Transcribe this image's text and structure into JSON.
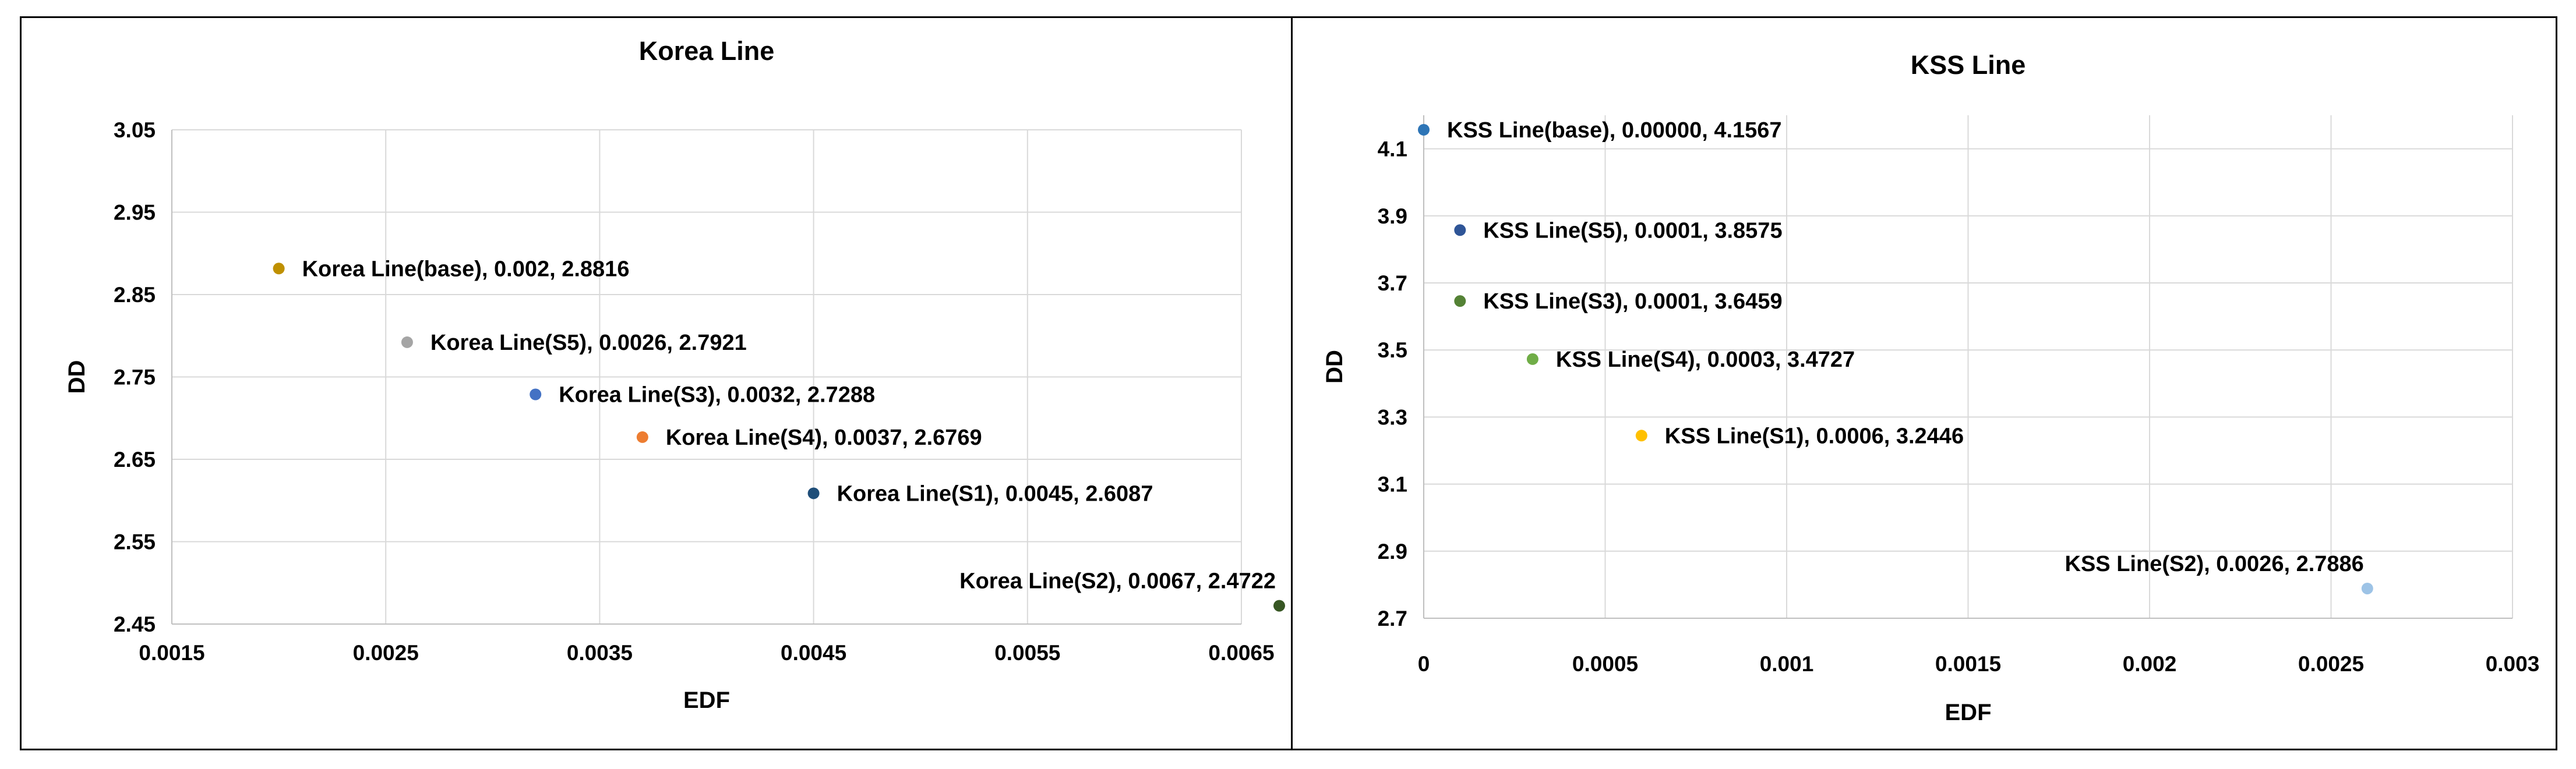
{
  "chart_data": [
    {
      "type": "scatter",
      "title": "Korea Line",
      "xlabel": "EDF",
      "ylabel": "DD",
      "xlim": [
        0.0015,
        0.0065
      ],
      "ylim": [
        2.45,
        3.05
      ],
      "xticks": [
        "0.0015",
        "0.0025",
        "0.0035",
        "0.0045",
        "0.0055",
        "0.0065"
      ],
      "yticks": [
        "2.45",
        "2.55",
        "2.65",
        "2.75",
        "2.85",
        "2.95",
        "3.05"
      ],
      "grid": true,
      "points": [
        {
          "x": 0.002,
          "y": 2.8816,
          "label": "Korea Line(base), 0.002, 2.8816",
          "color": "#BF9000",
          "label_position": "right"
        },
        {
          "x": 0.0026,
          "y": 2.7921,
          "label": "Korea Line(S5), 0.0026, 2.7921",
          "color": "#A5A5A5",
          "label_position": "right"
        },
        {
          "x": 0.0032,
          "y": 2.7288,
          "label": "Korea Line(S3), 0.0032, 2.7288",
          "color": "#4472C4",
          "label_position": "right"
        },
        {
          "x": 0.0037,
          "y": 2.6769,
          "label": "Korea Line(S4), 0.0037, 2.6769",
          "color": "#ED7D31",
          "label_position": "right"
        },
        {
          "x": 0.0045,
          "y": 2.6087,
          "label": "Korea Line(S1), 0.0045, 2.6087",
          "color": "#1F4E79",
          "label_position": "right"
        },
        {
          "x": 0.0067,
          "y": 2.4722,
          "label": "Korea Line(S2), 0.0067, 2.4722",
          "color": "#375623",
          "label_position": "above-left"
        }
      ]
    },
    {
      "type": "scatter",
      "title": "KSS Line",
      "xlabel": "EDF",
      "ylabel": "DD",
      "xlim": [
        0,
        0.003
      ],
      "ylim": [
        2.7,
        4.2
      ],
      "xticks": [
        "0",
        "0.0005",
        "0.001",
        "0.0015",
        "0.002",
        "0.0025",
        "0.003"
      ],
      "yticks": [
        "2.7",
        "2.9",
        "3.1",
        "3.3",
        "3.5",
        "3.7",
        "3.9",
        "4.1"
      ],
      "grid": true,
      "points": [
        {
          "x": 0,
          "y": 4.1567,
          "label": "KSS Line(base), 0.00000, 4.1567",
          "color": "#2E75B6",
          "label_position": "right"
        },
        {
          "x": 0.0001,
          "y": 3.8575,
          "label": "KSS Line(S5), 0.0001, 3.8575",
          "color": "#2F5597",
          "label_position": "right"
        },
        {
          "x": 0.0001,
          "y": 3.6459,
          "label": "KSS Line(S3), 0.0001, 3.6459",
          "color": "#548235",
          "label_position": "right"
        },
        {
          "x": 0.0003,
          "y": 3.4727,
          "label": "KSS Line(S4), 0.0003, 3.4727",
          "color": "#70AD47",
          "label_position": "right"
        },
        {
          "x": 0.0006,
          "y": 3.2446,
          "label": "KSS Line(S1), 0.0006, 3.2446",
          "color": "#FFC000",
          "label_position": "right"
        },
        {
          "x": 0.0026,
          "y": 2.7886,
          "label": "KSS Line(S2), 0.0026, 2.7886",
          "color": "#9DC3E6",
          "label_position": "above-left"
        }
      ]
    }
  ]
}
